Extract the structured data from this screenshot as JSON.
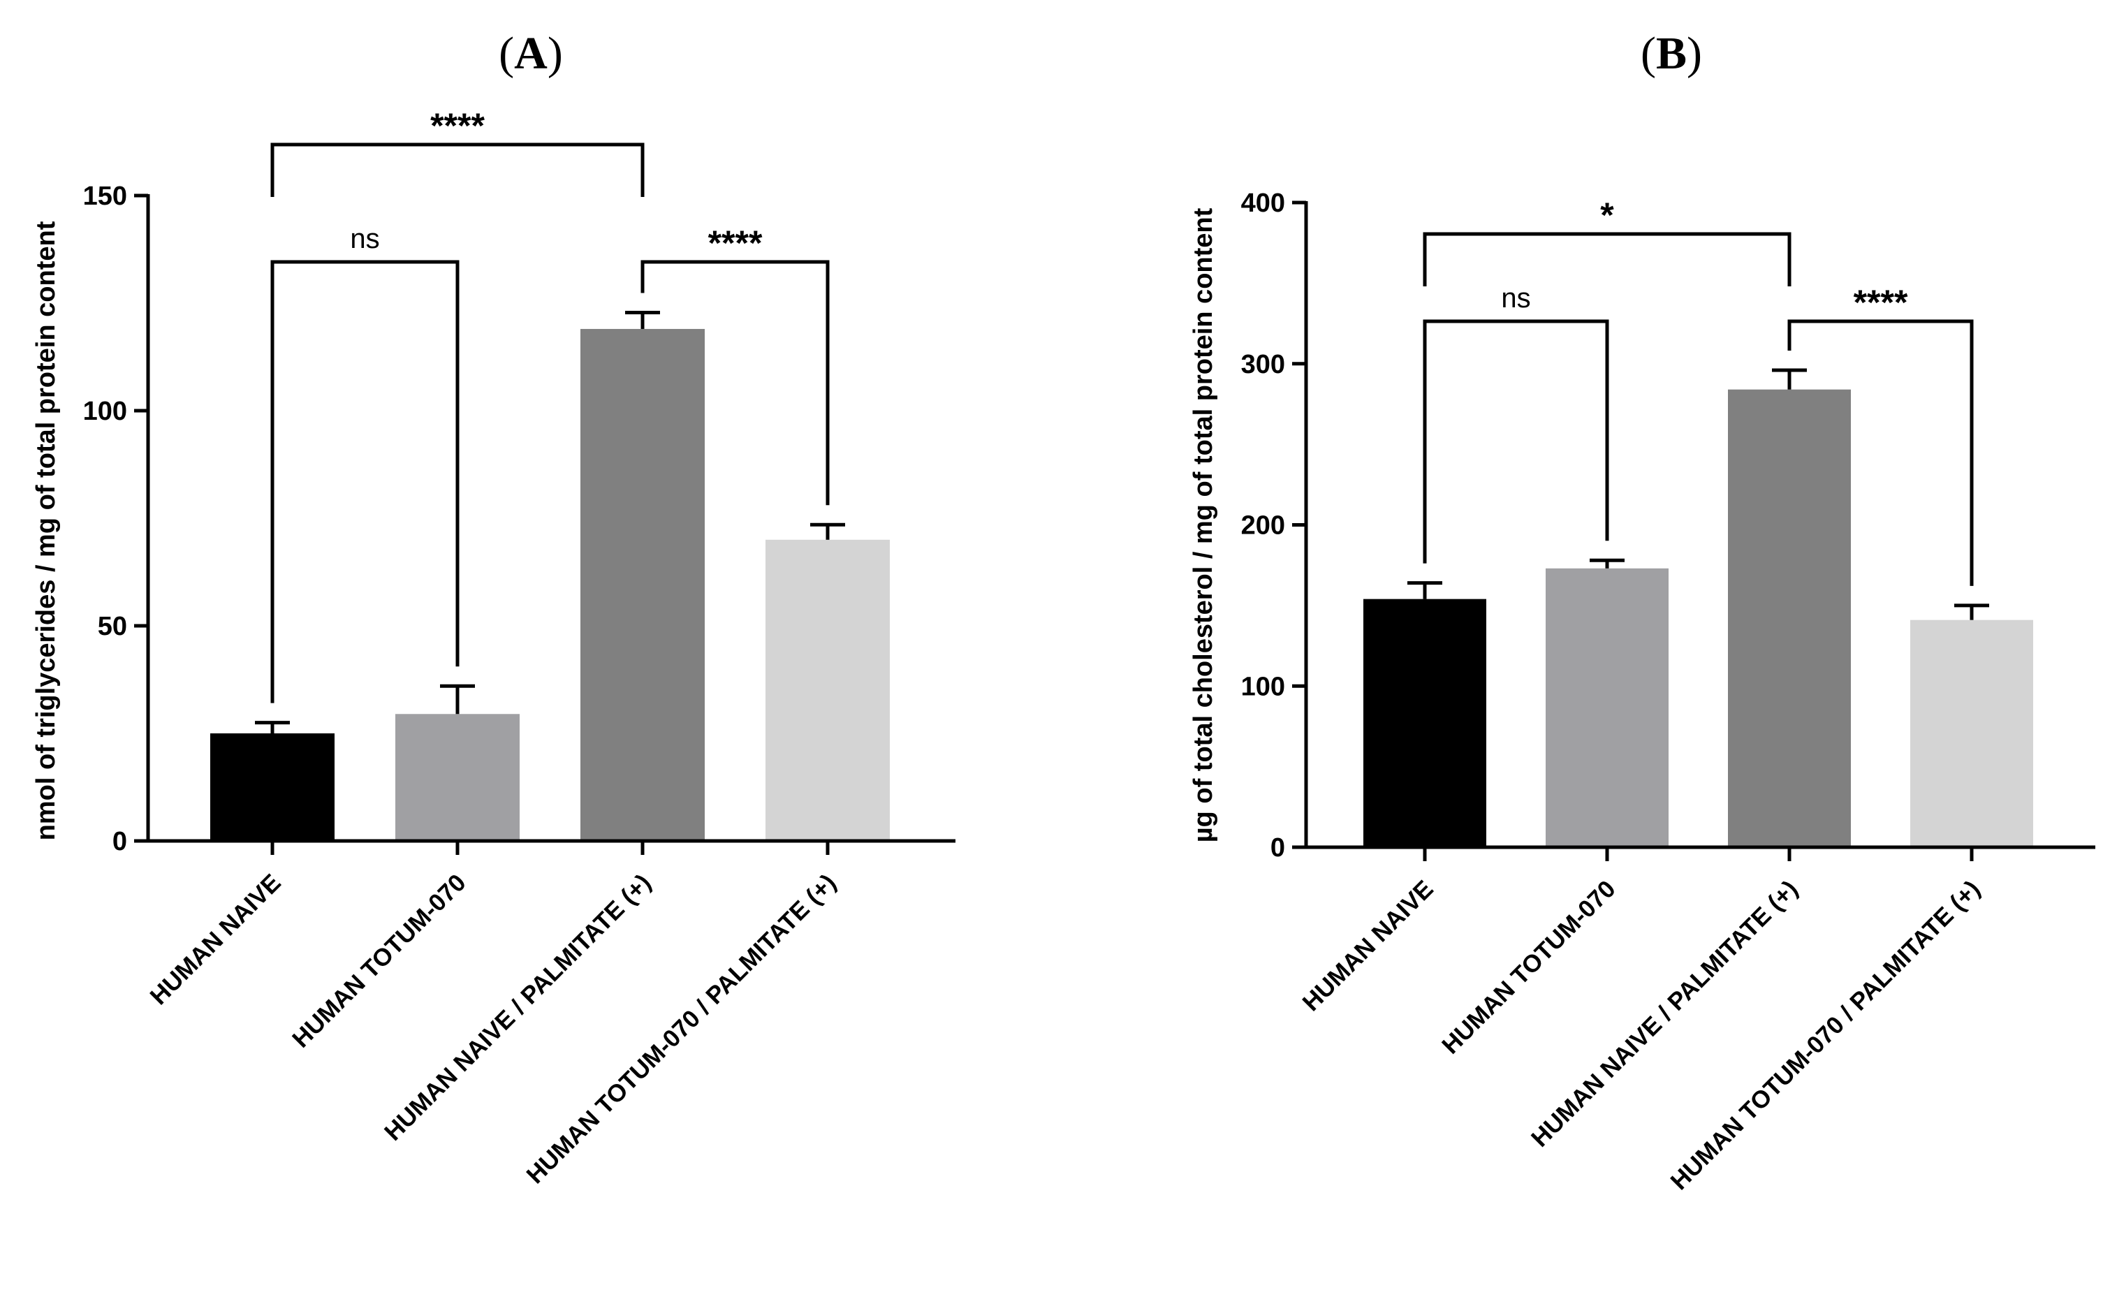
{
  "chart_data": [
    {
      "type": "bar",
      "panel_label": "A",
      "title": "",
      "xlabel": "",
      "ylabel": "nmol of triglycerides / mg of total protein content",
      "ylim": [
        0,
        150
      ],
      "yticks": [
        0,
        50,
        100,
        150
      ],
      "categories": [
        "HUMAN NAIVE",
        "HUMAN TOTUM-070",
        "HUMAN NAIVE / PALMITATE (+)",
        "HUMAN TOTUM-070 / PALMITATE (+)"
      ],
      "values": [
        25,
        29.5,
        119,
        70
      ],
      "errors": [
        2.5,
        6.5,
        3.8,
        3.5
      ],
      "bar_colors": [
        "#000000",
        "#a0a0a3",
        "#808080",
        "#d4d4d4"
      ],
      "comparisons": [
        {
          "from": 0,
          "to": 1,
          "label": "ns"
        },
        {
          "from": 0,
          "to": 2,
          "label": "****"
        },
        {
          "from": 2,
          "to": 3,
          "label": "****"
        }
      ]
    },
    {
      "type": "bar",
      "panel_label": "B",
      "title": "",
      "xlabel": "",
      "ylabel": "µg of total cholesterol / mg of total protein content",
      "ylim": [
        0,
        400
      ],
      "yticks": [
        0,
        100,
        200,
        300,
        400
      ],
      "categories": [
        "HUMAN NAIVE",
        "HUMAN TOTUM-070",
        "HUMAN NAIVE / PALMITATE (+)",
        "HUMAN TOTUM-070 / PALMITATE (+)"
      ],
      "values": [
        154,
        173,
        284,
        141
      ],
      "errors": [
        10,
        5,
        12,
        9
      ],
      "bar_colors": [
        "#000000",
        "#a0a0a3",
        "#808080",
        "#d4d4d4"
      ],
      "comparisons": [
        {
          "from": 0,
          "to": 1,
          "label": "ns"
        },
        {
          "from": 0,
          "to": 2,
          "label": "*"
        },
        {
          "from": 2,
          "to": 3,
          "label": "****"
        }
      ]
    }
  ]
}
